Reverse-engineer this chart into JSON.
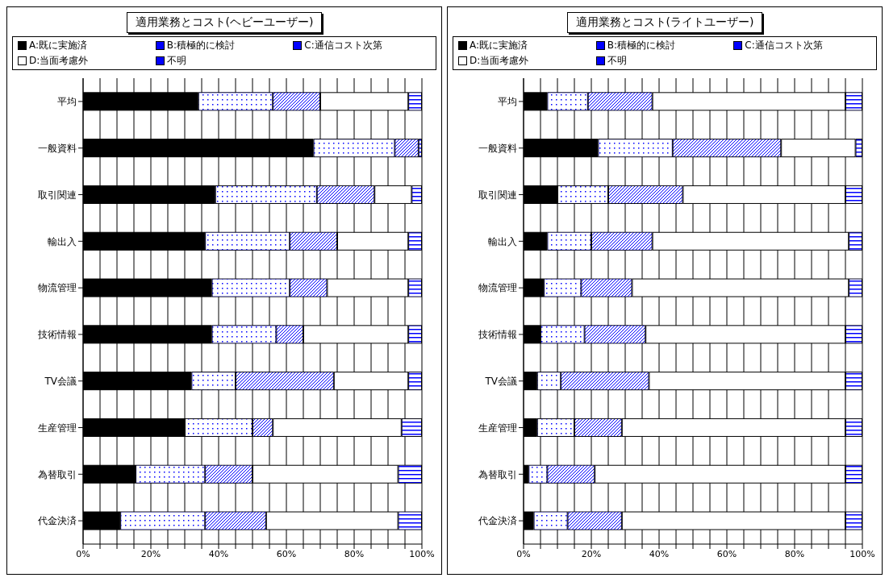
{
  "chart_data": [
    {
      "type": "bar",
      "title": "適用業務とコスト(ヘビーユーザー)",
      "orientation": "horizontal",
      "stacked": true,
      "legend": "top",
      "grid": "x",
      "categories": [
        "平均",
        "一般資料",
        "取引関連",
        "輸出入",
        "物流管理",
        "技術情報",
        "TV会議",
        "生産管理",
        "為替取引",
        "代金決済"
      ],
      "series": [
        {
          "name": "A:既に実施済",
          "color": "#000000",
          "values": [
            34,
            68,
            39,
            36,
            38,
            38,
            32,
            30,
            15.5,
            11
          ]
        },
        {
          "name": "B:積極的に検討",
          "color": "#0000ff",
          "values": [
            22,
            24,
            30,
            25,
            23,
            19,
            13,
            20,
            20.5,
            25
          ]
        },
        {
          "name": "C:通信コスト次第",
          "color": "#0000ff",
          "values": [
            14,
            7,
            17,
            14,
            11,
            8,
            29,
            6,
            14,
            18
          ]
        },
        {
          "name": "D:当面考慮外",
          "color": "#ffffff",
          "values": [
            26,
            0,
            11,
            21,
            24,
            31,
            22,
            38,
            43,
            39
          ]
        },
        {
          "name": "不明",
          "color": "#0000ff",
          "values": [
            4,
            1,
            3,
            4,
            4,
            4,
            4,
            6,
            7,
            7
          ]
        }
      ],
      "xlim": [
        0,
        100
      ],
      "xticks": [
        {
          "value": 0,
          "label": "0%"
        },
        {
          "value": 5,
          "label": null
        },
        {
          "value": 10,
          "label": null
        },
        {
          "value": 15,
          "label": null
        },
        {
          "value": 20,
          "label": "20%"
        },
        {
          "value": 25,
          "label": null
        },
        {
          "value": 30,
          "label": null
        },
        {
          "value": 35,
          "label": null
        },
        {
          "value": 40,
          "label": "40%"
        },
        {
          "value": 45,
          "label": null
        },
        {
          "value": 50,
          "label": null
        },
        {
          "value": 55,
          "label": null
        },
        {
          "value": 60,
          "label": "60%"
        },
        {
          "value": 65,
          "label": null
        },
        {
          "value": 70,
          "label": null
        },
        {
          "value": 75,
          "label": null
        },
        {
          "value": 80,
          "label": "80%"
        },
        {
          "value": 85,
          "label": null
        },
        {
          "value": 90,
          "label": null
        },
        {
          "value": 95,
          "label": null
        },
        {
          "value": 100,
          "label": "100%"
        }
      ]
    },
    {
      "type": "bar",
      "title": "適用業務とコスト(ライトユーザー)",
      "orientation": "horizontal",
      "stacked": true,
      "legend": "top",
      "grid": "x",
      "categories": [
        "平均",
        "一般資料",
        "取引関連",
        "輸出入",
        "物流管理",
        "技術情報",
        "TV会議",
        "生産管理",
        "為替取引",
        "代金決済"
      ],
      "series": [
        {
          "name": "A:既に実施済",
          "color": "#000000",
          "values": [
            7,
            22,
            10,
            7,
            6,
            5,
            4,
            4,
            1.5,
            3
          ]
        },
        {
          "name": "B:積極的に検討",
          "color": "#0000ff",
          "values": [
            12,
            22,
            15,
            13,
            11,
            13,
            7,
            11,
            5.5,
            10
          ]
        },
        {
          "name": "C:通信コスト次第",
          "color": "#0000ff",
          "values": [
            19,
            32,
            22,
            18,
            15,
            18,
            26,
            14,
            14,
            16
          ]
        },
        {
          "name": "D:当面考慮外",
          "color": "#ffffff",
          "values": [
            57,
            22,
            48,
            58,
            64,
            59,
            58,
            66,
            74,
            66
          ]
        },
        {
          "name": "不明",
          "color": "#0000ff",
          "values": [
            5,
            2,
            5,
            4,
            4,
            5,
            5,
            5,
            5,
            5
          ]
        }
      ],
      "xlim": [
        0,
        100
      ],
      "xticks": [
        {
          "value": 0,
          "label": "0%"
        },
        {
          "value": 5,
          "label": null
        },
        {
          "value": 10,
          "label": null
        },
        {
          "value": 15,
          "label": null
        },
        {
          "value": 20,
          "label": "20%"
        },
        {
          "value": 25,
          "label": null
        },
        {
          "value": 30,
          "label": null
        },
        {
          "value": 35,
          "label": null
        },
        {
          "value": 40,
          "label": "40%"
        },
        {
          "value": 45,
          "label": null
        },
        {
          "value": 50,
          "label": null
        },
        {
          "value": 55,
          "label": null
        },
        {
          "value": 60,
          "label": "60%"
        },
        {
          "value": 65,
          "label": null
        },
        {
          "value": 70,
          "label": null
        },
        {
          "value": 75,
          "label": null
        },
        {
          "value": 80,
          "label": "80%"
        },
        {
          "value": 85,
          "label": null
        },
        {
          "value": 90,
          "label": null
        },
        {
          "value": 95,
          "label": null
        },
        {
          "value": 100,
          "label": "100%"
        }
      ]
    }
  ]
}
